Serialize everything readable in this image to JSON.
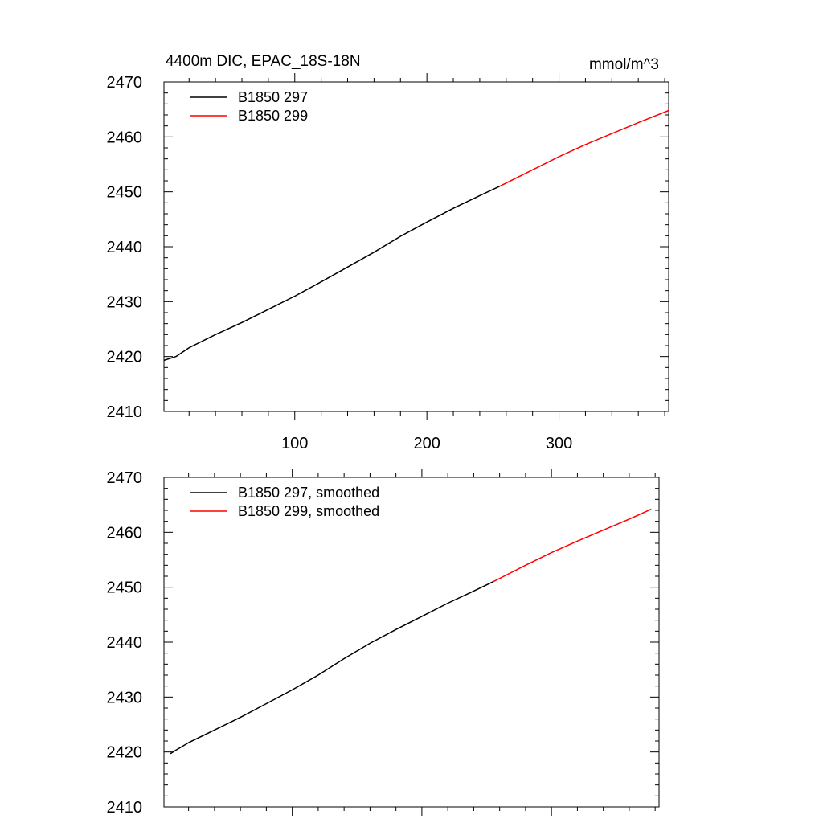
{
  "chart_data": [
    {
      "type": "line",
      "title": "4400m DIC, EPAC_18S-18N",
      "units": "mmol/m^3",
      "xlim": [
        1,
        383
      ],
      "ylim": [
        2410,
        2470
      ],
      "x_ticks": [
        100,
        200,
        300
      ],
      "x_tick_labels": [
        "100",
        "200",
        "300"
      ],
      "y_ticks": [
        2410,
        2420,
        2430,
        2440,
        2450,
        2460,
        2470
      ],
      "y_tick_labels": [
        "2410",
        "2420",
        "2430",
        "2440",
        "2450",
        "2460",
        "2470"
      ],
      "legend_position": "top-left",
      "series": [
        {
          "name": "B1850 297",
          "color": "#000000",
          "x": [
            1,
            10,
            20,
            30,
            40,
            60,
            80,
            100,
            120,
            140,
            160,
            180,
            200,
            220,
            240,
            255
          ],
          "y": [
            2419.3,
            2420.0,
            2421.6,
            2422.8,
            2424.0,
            2426.2,
            2428.6,
            2431.0,
            2433.6,
            2436.3,
            2439.0,
            2441.9,
            2444.5,
            2447.0,
            2449.3,
            2451.0
          ]
        },
        {
          "name": "B1850 299",
          "color": "#ff0000",
          "x": [
            255,
            280,
            300,
            320,
            340,
            360,
            383
          ],
          "y": [
            2451.0,
            2454.0,
            2456.4,
            2458.6,
            2460.6,
            2462.6,
            2464.8
          ]
        }
      ]
    },
    {
      "type": "line",
      "xlim": [
        1,
        383
      ],
      "ylim": [
        2410,
        2470
      ],
      "x_ticks": [
        100,
        200,
        300
      ],
      "y_ticks": [
        2410,
        2420,
        2430,
        2440,
        2450,
        2460,
        2470
      ],
      "y_tick_labels": [
        "2410",
        "2420",
        "2430",
        "2440",
        "2450",
        "2460",
        "2470"
      ],
      "legend_position": "top-left",
      "series": [
        {
          "name": "B1850 297, smoothed",
          "color": "#000000",
          "x": [
            6,
            10,
            20,
            40,
            60,
            80,
            100,
            120,
            140,
            160,
            180,
            200,
            220,
            240,
            255
          ],
          "y": [
            2419.7,
            2420.3,
            2421.7,
            2424.0,
            2426.3,
            2428.8,
            2431.3,
            2434.0,
            2437.0,
            2439.8,
            2442.3,
            2444.7,
            2447.1,
            2449.3,
            2451.0
          ]
        },
        {
          "name": "B1850 299, smoothed",
          "color": "#ff0000",
          "x": [
            255,
            280,
            300,
            320,
            340,
            360,
            377
          ],
          "y": [
            2451.0,
            2454.0,
            2456.3,
            2458.4,
            2460.4,
            2462.4,
            2464.2
          ]
        }
      ]
    }
  ]
}
